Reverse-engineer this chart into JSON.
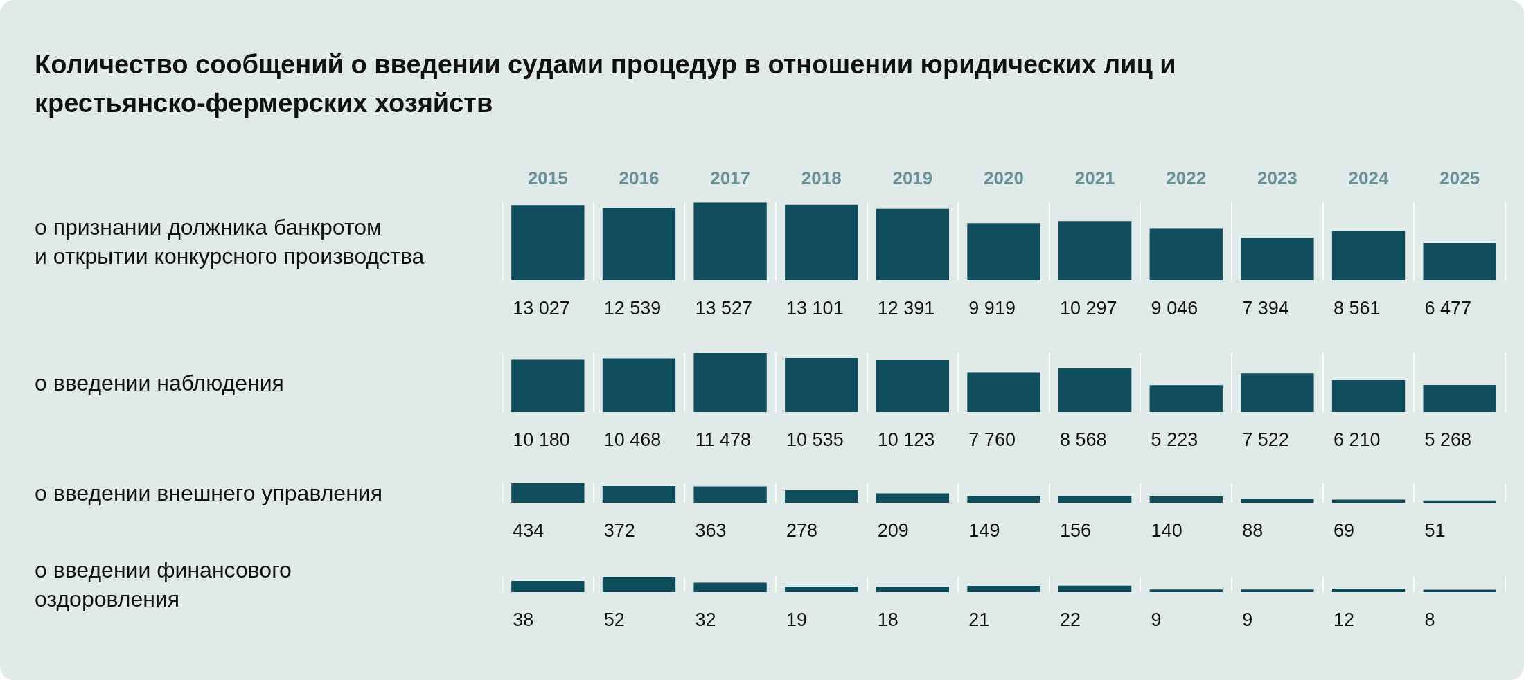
{
  "chart_data": [
    {
      "type": "bar",
      "title": "Количество сообщений о введении судами процедур в отношении юридических лиц и крестьянско-фермерских хозяйств",
      "ylabel": "о признании должника банкротом\nи открытии конкурсного производства",
      "categories": [
        "2015",
        "2016",
        "2017",
        "2018",
        "2019",
        "2020",
        "2021",
        "2022",
        "2023",
        "2024",
        "2025"
      ],
      "values": [
        13027,
        12539,
        13527,
        13101,
        12391,
        9919,
        10297,
        9046,
        7394,
        8561,
        6477
      ],
      "color": "#0f4c5c",
      "data_labels": true,
      "grid": "x",
      "tick_labels": "x",
      "legend": false
    },
    {
      "type": "bar",
      "ylabel": "о введении наблюдения",
      "categories": [
        "2015",
        "2016",
        "2017",
        "2018",
        "2019",
        "2020",
        "2021",
        "2022",
        "2023",
        "2024",
        "2025"
      ],
      "values": [
        10180,
        10468,
        11478,
        10535,
        10123,
        7760,
        8568,
        5223,
        7522,
        6210,
        5268
      ],
      "color": "#0f4c5c",
      "data_labels": true,
      "grid": "x",
      "tick_labels": false,
      "legend": false
    },
    {
      "type": "bar",
      "ylabel": "о введении внешнего управления",
      "categories": [
        "2015",
        "2016",
        "2017",
        "2018",
        "2019",
        "2020",
        "2021",
        "2022",
        "2023",
        "2024",
        "2025"
      ],
      "values": [
        434,
        372,
        363,
        278,
        209,
        149,
        156,
        140,
        88,
        69,
        51
      ],
      "color": "#0f4c5c",
      "data_labels": true,
      "grid": "x",
      "tick_labels": false,
      "legend": false
    },
    {
      "type": "bar",
      "ylabel": "о введении финансового\nоздоровления",
      "categories": [
        "2015",
        "2016",
        "2017",
        "2018",
        "2019",
        "2020",
        "2021",
        "2022",
        "2023",
        "2024",
        "2025"
      ],
      "values": [
        38,
        52,
        32,
        19,
        18,
        21,
        22,
        9,
        9,
        12,
        8
      ],
      "color": "#0f4c5c",
      "data_labels": true,
      "grid": "x",
      "tick_labels": false,
      "legend": false
    }
  ]
}
